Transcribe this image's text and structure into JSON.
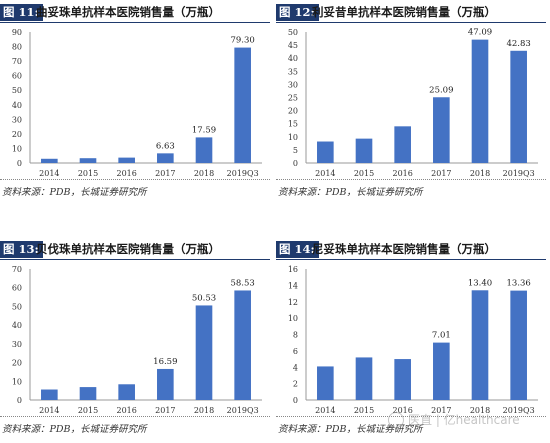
{
  "source_text": "资料来源：PDB，长城证券研究所",
  "watermark": "医直 | 亿healthcare",
  "bar_color": "#4472c4",
  "charts": [
    {
      "fig_label": "图 11:",
      "title": "曲妥珠单抗样本医院销售量（万瓶）",
      "chart_data": {
        "type": "bar",
        "categories": [
          "2014",
          "2015",
          "2016",
          "2017",
          "2018",
          "2019Q3"
        ],
        "values": [
          2.9,
          3.3,
          3.7,
          6.63,
          17.59,
          79.3
        ],
        "data_labels": [
          "",
          "",
          "",
          "6.63",
          "17.59",
          "79.30"
        ],
        "ylim": [
          0,
          90
        ],
        "yticks": [
          "0",
          "10",
          "20",
          "30",
          "40",
          "50",
          "60",
          "70",
          "80",
          "90"
        ],
        "ytick_values": [
          0,
          10,
          20,
          30,
          40,
          50,
          60,
          70,
          80,
          90
        ]
      }
    },
    {
      "fig_label": "图 12:",
      "title": "利妥昔单抗样本医院销售量（万瓶）",
      "chart_data": {
        "type": "bar",
        "categories": [
          "2014",
          "2015",
          "2016",
          "2017",
          "2018",
          "2019Q3"
        ],
        "values": [
          8.2,
          9.3,
          14.0,
          25.09,
          47.09,
          42.83
        ],
        "data_labels": [
          "",
          "",
          "",
          "25.09",
          "47.09",
          "42.83"
        ],
        "ylim": [
          0,
          50
        ],
        "yticks": [
          "0",
          "5",
          "10",
          "15",
          "20",
          "25",
          "30",
          "35",
          "40",
          "45",
          "50"
        ],
        "ytick_values": [
          0,
          5,
          10,
          15,
          20,
          25,
          30,
          35,
          40,
          45,
          50
        ]
      }
    },
    {
      "fig_label": "图 13:",
      "title": "贝伐珠单抗样本医院销售量（万瓶）",
      "chart_data": {
        "type": "bar",
        "categories": [
          "2014",
          "2015",
          "2016",
          "2017",
          "2018",
          "2019Q3"
        ],
        "values": [
          5.6,
          6.9,
          8.4,
          16.59,
          50.53,
          58.53
        ],
        "data_labels": [
          "",
          "",
          "",
          "16.59",
          "50.53",
          "58.53"
        ],
        "ylim": [
          0,
          70
        ],
        "yticks": [
          "0",
          "10",
          "20",
          "30",
          "40",
          "50",
          "60",
          "70"
        ],
        "ytick_values": [
          0,
          10,
          20,
          30,
          40,
          50,
          60,
          70
        ]
      }
    },
    {
      "fig_label": "图 14:",
      "title": "尼妥珠单抗样本医院销售量（万瓶）",
      "chart_data": {
        "type": "bar",
        "categories": [
          "2014",
          "2015",
          "2016",
          "2017",
          "2018",
          "2019Q3"
        ],
        "values": [
          4.1,
          5.2,
          5.0,
          7.01,
          13.4,
          13.36
        ],
        "data_labels": [
          "",
          "",
          "",
          "7.01",
          "13.40",
          "13.36"
        ],
        "ylim": [
          0,
          16
        ],
        "yticks": [
          "0",
          "2",
          "4",
          "6",
          "8",
          "10",
          "12",
          "14",
          "16"
        ],
        "ytick_values": [
          0,
          2,
          4,
          6,
          8,
          10,
          12,
          14,
          16
        ]
      }
    }
  ]
}
